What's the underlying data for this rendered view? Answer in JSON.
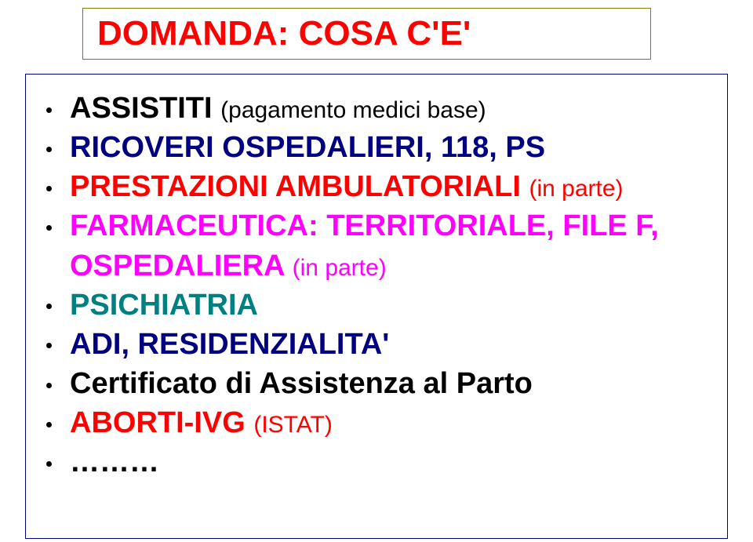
{
  "colors": {
    "background": "#ffffff",
    "title_border": "#808000",
    "title_text": "#ff0000",
    "content_border": "#000080",
    "bullet_dot": "#000000",
    "text_black": "#000000",
    "text_blue": "#000080",
    "text_red": "#ff0000",
    "text_magenta": "#ff00ff",
    "text_teal": "#008080"
  },
  "title": "DOMANDA: COSA C'E'",
  "items": [
    {
      "segments": [
        {
          "text": "ASSISTITI ",
          "color": "#000000"
        },
        {
          "text": "(pagamento medici base)",
          "color": "#000000",
          "plain_sub": true
        }
      ]
    },
    {
      "segments": [
        {
          "text": "RICOVERI OSPEDALIERI, 118, PS",
          "color": "#000080"
        }
      ]
    },
    {
      "segments": [
        {
          "text": "PRESTAZIONI AMBULATORIALI ",
          "color": "#ff0000"
        },
        {
          "text": "(in parte)",
          "color": "#ff0000",
          "plain_sub": true
        }
      ]
    },
    {
      "segments": [
        {
          "text": "FARMACEUTICA: TERRITORIALE, FILE F, OSPEDALIERA ",
          "color": "#ff00ff"
        },
        {
          "text": "(in parte)",
          "color": "#ff00ff",
          "plain_sub": true
        }
      ]
    },
    {
      "segments": [
        {
          "text": "PSICHIATRIA",
          "color": "#008080"
        }
      ]
    },
    {
      "segments": [
        {
          "text": "ADI, RESIDENZIALITA'",
          "color": "#000080"
        }
      ]
    },
    {
      "segments": [
        {
          "text": "Certificato di Assistenza al Parto",
          "color": "#000000"
        }
      ]
    },
    {
      "segments": [
        {
          "text": "ABORTI-IVG ",
          "color": "#ff0000"
        },
        {
          "text": "(ISTAT)",
          "color": "#ff0000",
          "plain_sub": true
        }
      ]
    },
    {
      "segments": [
        {
          "text": "………",
          "color": "#000000"
        }
      ]
    }
  ]
}
